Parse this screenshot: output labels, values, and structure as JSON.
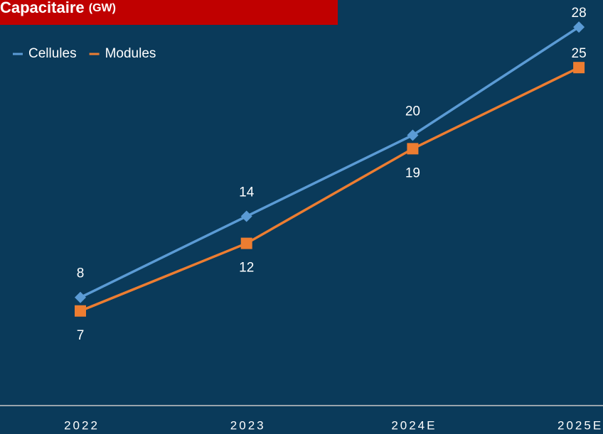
{
  "chart_data": {
    "type": "line",
    "title": "Capacitaire",
    "unit": "(GW)",
    "categories": [
      "2022",
      "2023",
      "2024E",
      "2025E"
    ],
    "series": [
      {
        "name": "Cellules",
        "color": "#5b9bd5",
        "marker": "diamond",
        "values": [
          8,
          14,
          20,
          28
        ]
      },
      {
        "name": "Modules",
        "color": "#ed7d31",
        "marker": "square",
        "values": [
          7,
          12,
          19,
          25
        ]
      }
    ],
    "ylim": [
      0,
      30
    ]
  }
}
